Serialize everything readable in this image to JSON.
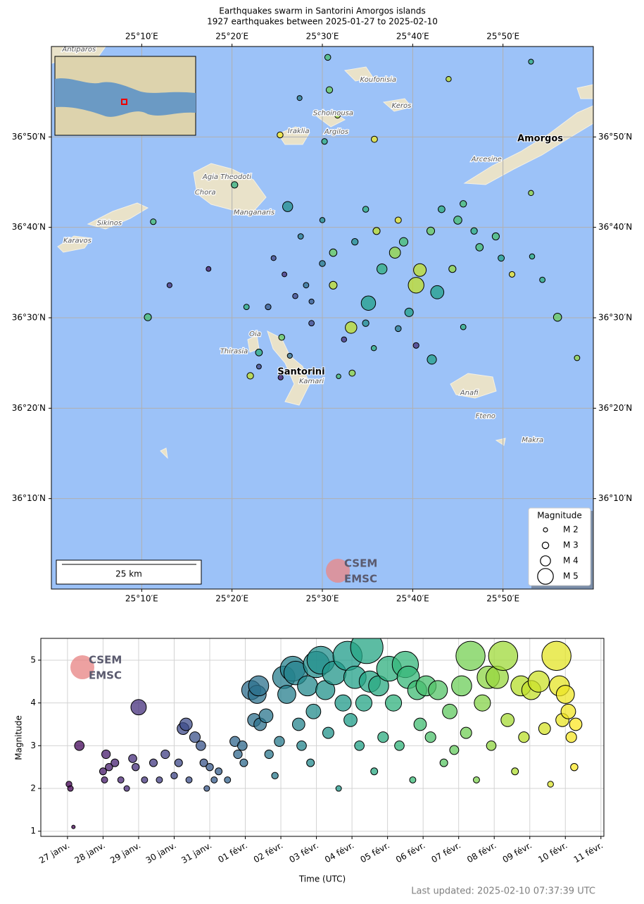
{
  "logo": {
    "top": "CSEM",
    "bottom": "EMSC"
  },
  "footer": "Last updated: 2025-02-10 07:37:39 UTC",
  "chart_data": [
    {
      "type": "map-scatter",
      "title": "Earthquakes swarm in Santorini Amorgos islands",
      "subtitle": "1927 earthquakes between 2025-01-27 to 2025-02-10",
      "xlim": [
        25.0,
        26.0
      ],
      "ylim": [
        36.0,
        37.0
      ],
      "xticks": [
        {
          "value": 25.1667,
          "label": "25°10′E"
        },
        {
          "value": 25.3333,
          "label": "25°20′E"
        },
        {
          "value": 25.5,
          "label": "25°30′E"
        },
        {
          "value": 25.6667,
          "label": "25°40′E"
        },
        {
          "value": 25.8333,
          "label": "25°50′E"
        }
      ],
      "yticks": [
        {
          "value": 36.1667,
          "label": "36°10′N"
        },
        {
          "value": 36.3333,
          "label": "36°20′N"
        },
        {
          "value": 36.5,
          "label": "36°30′N"
        },
        {
          "value": 36.6667,
          "label": "36°40′N"
        },
        {
          "value": 36.8333,
          "label": "36°50′N"
        }
      ],
      "grid": true,
      "colormap": "viridis",
      "clim": [
        "2025-01-27",
        "2025-02-10T08:00Z"
      ],
      "series": [
        {
          "name": "Magnitude",
          "x": [
            25.673,
            25.68,
            25.634,
            25.585,
            25.553,
            25.712,
            25.436,
            25.702,
            25.934,
            25.178,
            25.61,
            25.65,
            25.7,
            25.75,
            25.78,
            25.82,
            25.56,
            25.52,
            25.5,
            25.47,
            25.48,
            25.45,
            25.43,
            25.52,
            25.6,
            25.64,
            25.72,
            25.76,
            25.58,
            25.5,
            25.46,
            25.41,
            25.4,
            25.48,
            25.54,
            25.58,
            25.64,
            25.66,
            25.74,
            25.79,
            25.83,
            25.85,
            25.887,
            25.906,
            25.885,
            25.596,
            25.504,
            25.513,
            25.458,
            25.51,
            25.528,
            25.733,
            25.885,
            25.422,
            25.338,
            25.29,
            25.218,
            25.188,
            25.36,
            25.425,
            25.383,
            25.44,
            25.383,
            25.423,
            25.367,
            25.555,
            25.53,
            25.595,
            25.673,
            25.76,
            25.97
          ],
          "y": [
            36.56,
            36.588,
            36.62,
            36.527,
            36.482,
            36.547,
            36.705,
            36.423,
            36.501,
            36.501,
            36.59,
            36.64,
            36.66,
            36.68,
            36.66,
            36.65,
            36.64,
            36.62,
            36.6,
            36.56,
            36.53,
            36.54,
            36.58,
            36.56,
            36.66,
            36.68,
            36.7,
            36.71,
            36.7,
            36.68,
            36.65,
            36.61,
            36.52,
            36.49,
            36.46,
            36.49,
            36.48,
            36.51,
            36.59,
            36.63,
            36.61,
            36.58,
            36.613,
            36.57,
            36.73,
            36.829,
            36.825,
            36.92,
            36.905,
            36.98,
            36.873,
            36.94,
            36.972,
            36.837,
            36.745,
            36.59,
            36.56,
            36.677,
            36.52,
            36.464,
            36.436,
            36.43,
            36.41,
            36.39,
            36.393,
            36.398,
            36.392,
            36.444,
            36.449,
            36.483,
            36.426
          ],
          "sizes": [
            5.0,
            4.5,
            4.2,
            4.8,
            4.3,
            4.6,
            4.0,
            3.8,
            3.5,
            3.2,
            4.0,
            3.6,
            3.4,
            3.5,
            3.0,
            3.2,
            3.0,
            3.3,
            2.8,
            2.6,
            2.4,
            2.5,
            2.3,
            3.4,
            3.2,
            2.9,
            3.1,
            3.0,
            2.8,
            2.5,
            2.6,
            2.4,
            2.7,
            2.6,
            2.5,
            3.0,
            2.8,
            3.6,
            3.2,
            3.3,
            2.9,
            2.7,
            2.5,
            2.6,
            2.5,
            2.9,
            2.7,
            3.0,
            2.4,
            2.8,
            2.6,
            2.5,
            2.4,
            2.8,
            3.0,
            2.3,
            2.4,
            2.7,
            2.6,
            2.8,
            3.1,
            2.4,
            2.3,
            2.4,
            3.0,
            2.9,
            2.2,
            2.5,
            2.7,
            2.6,
            2.6
          ],
          "times": [
            "2025-02-09",
            "2025-02-09",
            "2025-02-08",
            "2025-02-04",
            "2025-02-09",
            "2025-02-04",
            "2025-02-03",
            "2025-02-04",
            "2025-02-07",
            "2025-02-06",
            "2025-02-05",
            "2025-02-06",
            "2025-02-07",
            "2025-02-06",
            "2025-02-05",
            "2025-02-06",
            "2025-02-03",
            "2025-02-07",
            "2025-02-02",
            "2025-02-01",
            "2025-01-31",
            "2025-01-30",
            "2025-01-29",
            "2025-02-09",
            "2025-02-09",
            "2025-02-10",
            "2025-02-05",
            "2025-02-06",
            "2025-02-05",
            "2025-02-03",
            "2025-02-02",
            "2025-01-30",
            "2025-01-31",
            "2025-01-30",
            "2025-01-29",
            "2025-02-03",
            "2025-02-02",
            "2025-02-04",
            "2025-02-08",
            "2025-02-06",
            "2025-02-04",
            "2025-02-10",
            "2025-02-05",
            "2025-02-05",
            "2025-02-08",
            "2025-02-10",
            "2025-02-05",
            "2025-02-07",
            "2025-02-02",
            "2025-02-06",
            "2025-02-08",
            "2025-02-09",
            "2025-02-05",
            "2025-02-10",
            "2025-02-05",
            "2025-01-28",
            "2025-01-29",
            "2025-02-06",
            "2025-02-05",
            "2025-02-07",
            "2025-02-05",
            "2025-02-01",
            "2025-01-30",
            "2025-01-28",
            "2025-02-09",
            "2025-02-08",
            "2025-02-06",
            "2025-02-05",
            "2025-01-29",
            "2025-02-05",
            "2025-02-08"
          ]
        }
      ],
      "annotations": [
        {
          "text": "Santorini",
          "lon": 25.461,
          "lat": 36.4
        },
        {
          "text": "Amorgos",
          "lon": 25.902,
          "lat": 36.83
        }
      ],
      "places": [
        {
          "text": "Koufonisia",
          "lon": 25.603,
          "lat": 36.939
        },
        {
          "text": "Keros",
          "lon": 25.646,
          "lat": 36.891
        },
        {
          "text": "Schoinousa",
          "lon": 25.52,
          "lat": 36.877
        },
        {
          "text": "Iraklia",
          "lon": 25.456,
          "lat": 36.844
        },
        {
          "text": "Argilos",
          "lon": 25.526,
          "lat": 36.843
        },
        {
          "text": "Agia Theodoti",
          "lon": 25.324,
          "lat": 36.76
        },
        {
          "text": "Chora",
          "lon": 25.284,
          "lat": 36.731
        },
        {
          "text": "Manganaris",
          "lon": 25.374,
          "lat": 36.694
        },
        {
          "text": "Sikinos",
          "lon": 25.107,
          "lat": 36.675
        },
        {
          "text": "Karavos",
          "lon": 25.048,
          "lat": 36.642
        },
        {
          "text": "Arcesine",
          "lon": 25.803,
          "lat": 36.792
        },
        {
          "text": "Oia",
          "lon": 25.376,
          "lat": 36.47
        },
        {
          "text": "Thirasia",
          "lon": 25.337,
          "lat": 36.438
        },
        {
          "text": "Kamari",
          "lon": 25.48,
          "lat": 36.383
        },
        {
          "text": "Anafi",
          "lon": 25.771,
          "lat": 36.362
        },
        {
          "text": "Fteno",
          "lon": 25.801,
          "lat": 36.319
        },
        {
          "text": "Makra",
          "lon": 25.888,
          "lat": 36.275
        },
        {
          "text": "Antiparos",
          "lon": 25.051,
          "lat": 36.995
        }
      ],
      "legend": {
        "title": "Magnitude",
        "position": "lower right",
        "entries": [
          {
            "value": 2,
            "label": "M 2"
          },
          {
            "value": 3,
            "label": "M 3"
          },
          {
            "value": 4,
            "label": "M 4"
          },
          {
            "value": 5,
            "label": "M 5"
          }
        ]
      },
      "scale_bar": "25 km"
    },
    {
      "type": "scatter",
      "x_label": "Time (UTC)",
      "y_label": "Magnitude",
      "xlim": [
        "2025-01-26T06:00Z",
        "2025-02-11T02:00Z"
      ],
      "ylim": [
        0.88,
        5.51
      ],
      "xticks": [
        {
          "value": "2025-01-27",
          "label": "27 janv."
        },
        {
          "value": "2025-01-28",
          "label": "28 janv."
        },
        {
          "value": "2025-01-29",
          "label": "29 janv."
        },
        {
          "value": "2025-01-30",
          "label": "30 janv."
        },
        {
          "value": "2025-01-31",
          "label": "31 janv."
        },
        {
          "value": "2025-02-01",
          "label": "01 févr."
        },
        {
          "value": "2025-02-02",
          "label": "02 févr."
        },
        {
          "value": "2025-02-03",
          "label": "03 févr."
        },
        {
          "value": "2025-02-04",
          "label": "04 févr."
        },
        {
          "value": "2025-02-05",
          "label": "05 févr."
        },
        {
          "value": "2025-02-06",
          "label": "06 févr."
        },
        {
          "value": "2025-02-07",
          "label": "07 févr."
        },
        {
          "value": "2025-02-08",
          "label": "08 févr."
        },
        {
          "value": "2025-02-09",
          "label": "09 févr."
        },
        {
          "value": "2025-02-10",
          "label": "10 févr."
        },
        {
          "value": "2025-02-11",
          "label": "11 févr."
        }
      ],
      "yticks": [
        1,
        2,
        3,
        4,
        5
      ],
      "grid": true,
      "colormap": "viridis",
      "clim": [
        "2025-01-27",
        "2025-02-10T08:00Z"
      ],
      "x": [
        "2025-01-27T01:00Z",
        "2025-01-27T02:00Z",
        "2025-01-27T04:00Z",
        "2025-01-27T08:00Z",
        "2025-01-28T00:00Z",
        "2025-01-28T01:00Z",
        "2025-01-28T02:00Z",
        "2025-01-28T04:00Z",
        "2025-01-28T08:00Z",
        "2025-01-28T12:00Z",
        "2025-01-28T16:00Z",
        "2025-01-28T20:00Z",
        "2025-01-28T22:00Z",
        "2025-01-29T00:00Z",
        "2025-01-29T04:00Z",
        "2025-01-29T10:00Z",
        "2025-01-29T14:00Z",
        "2025-01-29T18:00Z",
        "2025-01-30T00:00Z",
        "2025-01-30T03:00Z",
        "2025-01-30T06:00Z",
        "2025-01-30T08:00Z",
        "2025-01-30T10:00Z",
        "2025-01-30T14:00Z",
        "2025-01-30T18:00Z",
        "2025-01-30T20:00Z",
        "2025-01-30T22:00Z",
        "2025-01-31T00:00Z",
        "2025-01-31T03:00Z",
        "2025-01-31T06:00Z",
        "2025-01-31T12:00Z",
        "2025-01-31T17:00Z",
        "2025-01-31T19:00Z",
        "2025-01-31T22:00Z",
        "2025-01-31T23:00Z",
        "2025-02-01T04:00Z",
        "2025-02-01T06:00Z",
        "2025-02-01T08:00Z",
        "2025-02-01T09:00Z",
        "2025-02-01T10:00Z",
        "2025-02-01T14:00Z",
        "2025-02-01T16:00Z",
        "2025-02-01T20:00Z",
        "2025-02-01T23:00Z",
        "2025-02-02T02:00Z",
        "2025-02-02T04:00Z",
        "2025-02-02T08:00Z",
        "2025-02-02T10:00Z",
        "2025-02-02T12:00Z",
        "2025-02-02T14:00Z",
        "2025-02-02T18:00Z",
        "2025-02-02T20:00Z",
        "2025-02-02T22:00Z",
        "2025-02-03T00:00Z",
        "2025-02-03T03:00Z",
        "2025-02-03T06:00Z",
        "2025-02-03T08:00Z",
        "2025-02-03T12:00Z",
        "2025-02-03T15:00Z",
        "2025-02-03T18:00Z",
        "2025-02-03T21:00Z",
        "2025-02-03T23:00Z",
        "2025-02-04T02:00Z",
        "2025-02-04T05:00Z",
        "2025-02-04T08:00Z",
        "2025-02-04T10:00Z",
        "2025-02-04T12:00Z",
        "2025-02-04T15:00Z",
        "2025-02-04T18:00Z",
        "2025-02-04T21:00Z",
        "2025-02-05T01:00Z",
        "2025-02-05T04:00Z",
        "2025-02-05T08:00Z",
        "2025-02-05T12:00Z",
        "2025-02-05T14:00Z",
        "2025-02-05T17:00Z",
        "2025-02-05T20:00Z",
        "2025-02-05T22:00Z",
        "2025-02-06T02:00Z",
        "2025-02-06T05:00Z",
        "2025-02-06T10:00Z",
        "2025-02-06T14:00Z",
        "2025-02-06T18:00Z",
        "2025-02-06T21:00Z",
        "2025-02-07T02:00Z",
        "2025-02-07T05:00Z",
        "2025-02-07T08:00Z",
        "2025-02-07T12:00Z",
        "2025-02-07T16:00Z",
        "2025-02-07T20:00Z",
        "2025-02-07T22:00Z",
        "2025-02-08T02:00Z",
        "2025-02-08T06:00Z",
        "2025-02-08T09:00Z",
        "2025-02-08T14:00Z",
        "2025-02-08T18:00Z",
        "2025-02-08T20:00Z",
        "2025-02-09T01:00Z",
        "2025-02-09T06:00Z",
        "2025-02-09T10:00Z",
        "2025-02-09T14:00Z",
        "2025-02-09T18:00Z",
        "2025-02-09T20:00Z",
        "2025-02-09T22:00Z",
        "2025-02-10T00:00Z",
        "2025-02-10T02:00Z",
        "2025-02-10T04:00Z",
        "2025-02-10T06:00Z",
        "2025-02-10T07:00Z"
      ],
      "values": [
        2.1,
        2.0,
        1.1,
        3.0,
        2.4,
        2.2,
        2.8,
        2.5,
        2.6,
        2.2,
        2.0,
        2.7,
        2.5,
        3.9,
        2.2,
        2.6,
        2.2,
        2.8,
        2.3,
        2.6,
        3.4,
        3.5,
        2.2,
        3.2,
        3.0,
        2.6,
        2.0,
        2.5,
        2.2,
        2.4,
        2.2,
        3.1,
        2.8,
        3.0,
        2.6,
        4.3,
        3.6,
        4.2,
        4.4,
        3.5,
        3.7,
        2.8,
        2.3,
        3.1,
        4.6,
        4.2,
        4.8,
        4.7,
        3.5,
        3.0,
        4.4,
        2.6,
        3.8,
        4.9,
        5.0,
        4.3,
        3.3,
        4.7,
        2.0,
        4.0,
        5.1,
        3.6,
        4.6,
        3.0,
        4.0,
        5.3,
        4.5,
        2.4,
        4.4,
        3.2,
        4.8,
        4.0,
        3.0,
        4.9,
        4.6,
        2.2,
        4.3,
        3.5,
        4.4,
        3.2,
        4.3,
        2.6,
        3.8,
        2.9,
        4.4,
        3.3,
        5.1,
        2.2,
        4.0,
        4.6,
        3.0,
        4.6,
        5.1,
        3.6,
        2.4,
        4.4,
        3.2,
        4.3,
        4.5,
        3.4,
        2.1,
        5.1,
        4.4,
        3.6,
        4.2,
        3.8,
        3.2,
        2.5,
        3.5
      ]
    }
  ]
}
